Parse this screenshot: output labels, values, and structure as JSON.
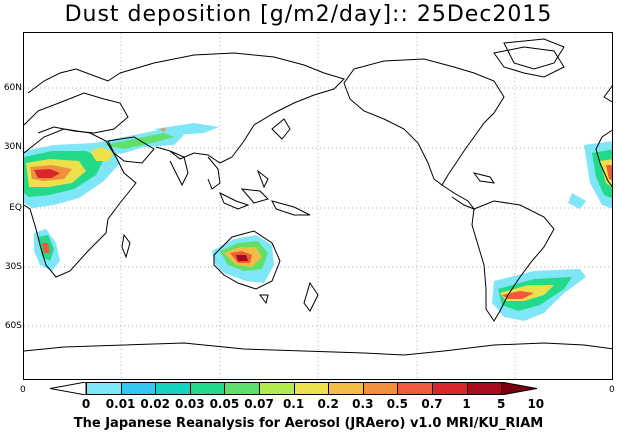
{
  "title": "Dust deposition [g/m2/day]:: 25Dec2015",
  "lat_labels": [
    "60N",
    "30N",
    "EQ",
    "30S",
    "60S"
  ],
  "edge_left_label": "0",
  "edge_right_label": "0",
  "colorbar": {
    "ticks": [
      "0",
      "0.01",
      "0.02",
      "0.03",
      "0.05",
      "0.07",
      "0.1",
      "0.2",
      "0.3",
      "0.5",
      "0.7",
      "1",
      "5",
      "10"
    ],
    "colors": [
      "#ffffff",
      "#7ee6f7",
      "#33c8f0",
      "#14d4c0",
      "#23d98a",
      "#5ee06a",
      "#b3ea50",
      "#ece04b",
      "#f2bd45",
      "#f28f3c",
      "#ee5a3a",
      "#d8262a",
      "#a80b1c",
      "#7a0010"
    ]
  },
  "footer": "The Japanese Reanalysis for Aerosol (JRAero) v1.0 MRI/KU_RIAM"
}
